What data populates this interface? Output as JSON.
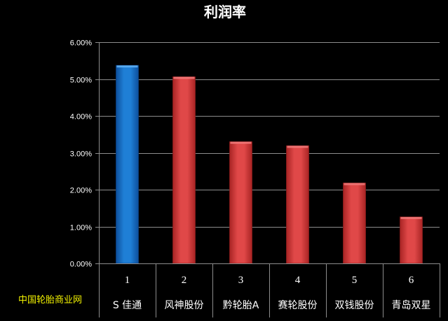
{
  "chart_data": {
    "type": "bar",
    "title": "利润率",
    "categories": [
      "S 佳通",
      "风神股份",
      "黔轮胎A",
      "赛轮股份",
      "双钱股份",
      "青岛双星"
    ],
    "category_index": [
      "1",
      "2",
      "3",
      "4",
      "5",
      "6"
    ],
    "values": [
      0.0537,
      0.0506,
      0.033,
      0.0319,
      0.0218,
      0.0126
    ],
    "ylim": [
      0,
      0.06
    ],
    "yticks": [
      0,
      0.01,
      0.02,
      0.03,
      0.04,
      0.05,
      0.06
    ],
    "ytick_labels": [
      "0.00%",
      "1.00%",
      "2.00%",
      "3.00%",
      "4.00%",
      "5.00%",
      "6.00%"
    ],
    "xlabel": "",
    "ylabel": "",
    "grid": true,
    "legend": "none",
    "colors": {
      "highlight": "#1f78d1",
      "default": "#d93e3e",
      "background": "#000000",
      "grid": "#8c8c8c",
      "text": "#ffffff"
    },
    "highlight_index": 0
  },
  "watermark": "中国轮胎商业网"
}
